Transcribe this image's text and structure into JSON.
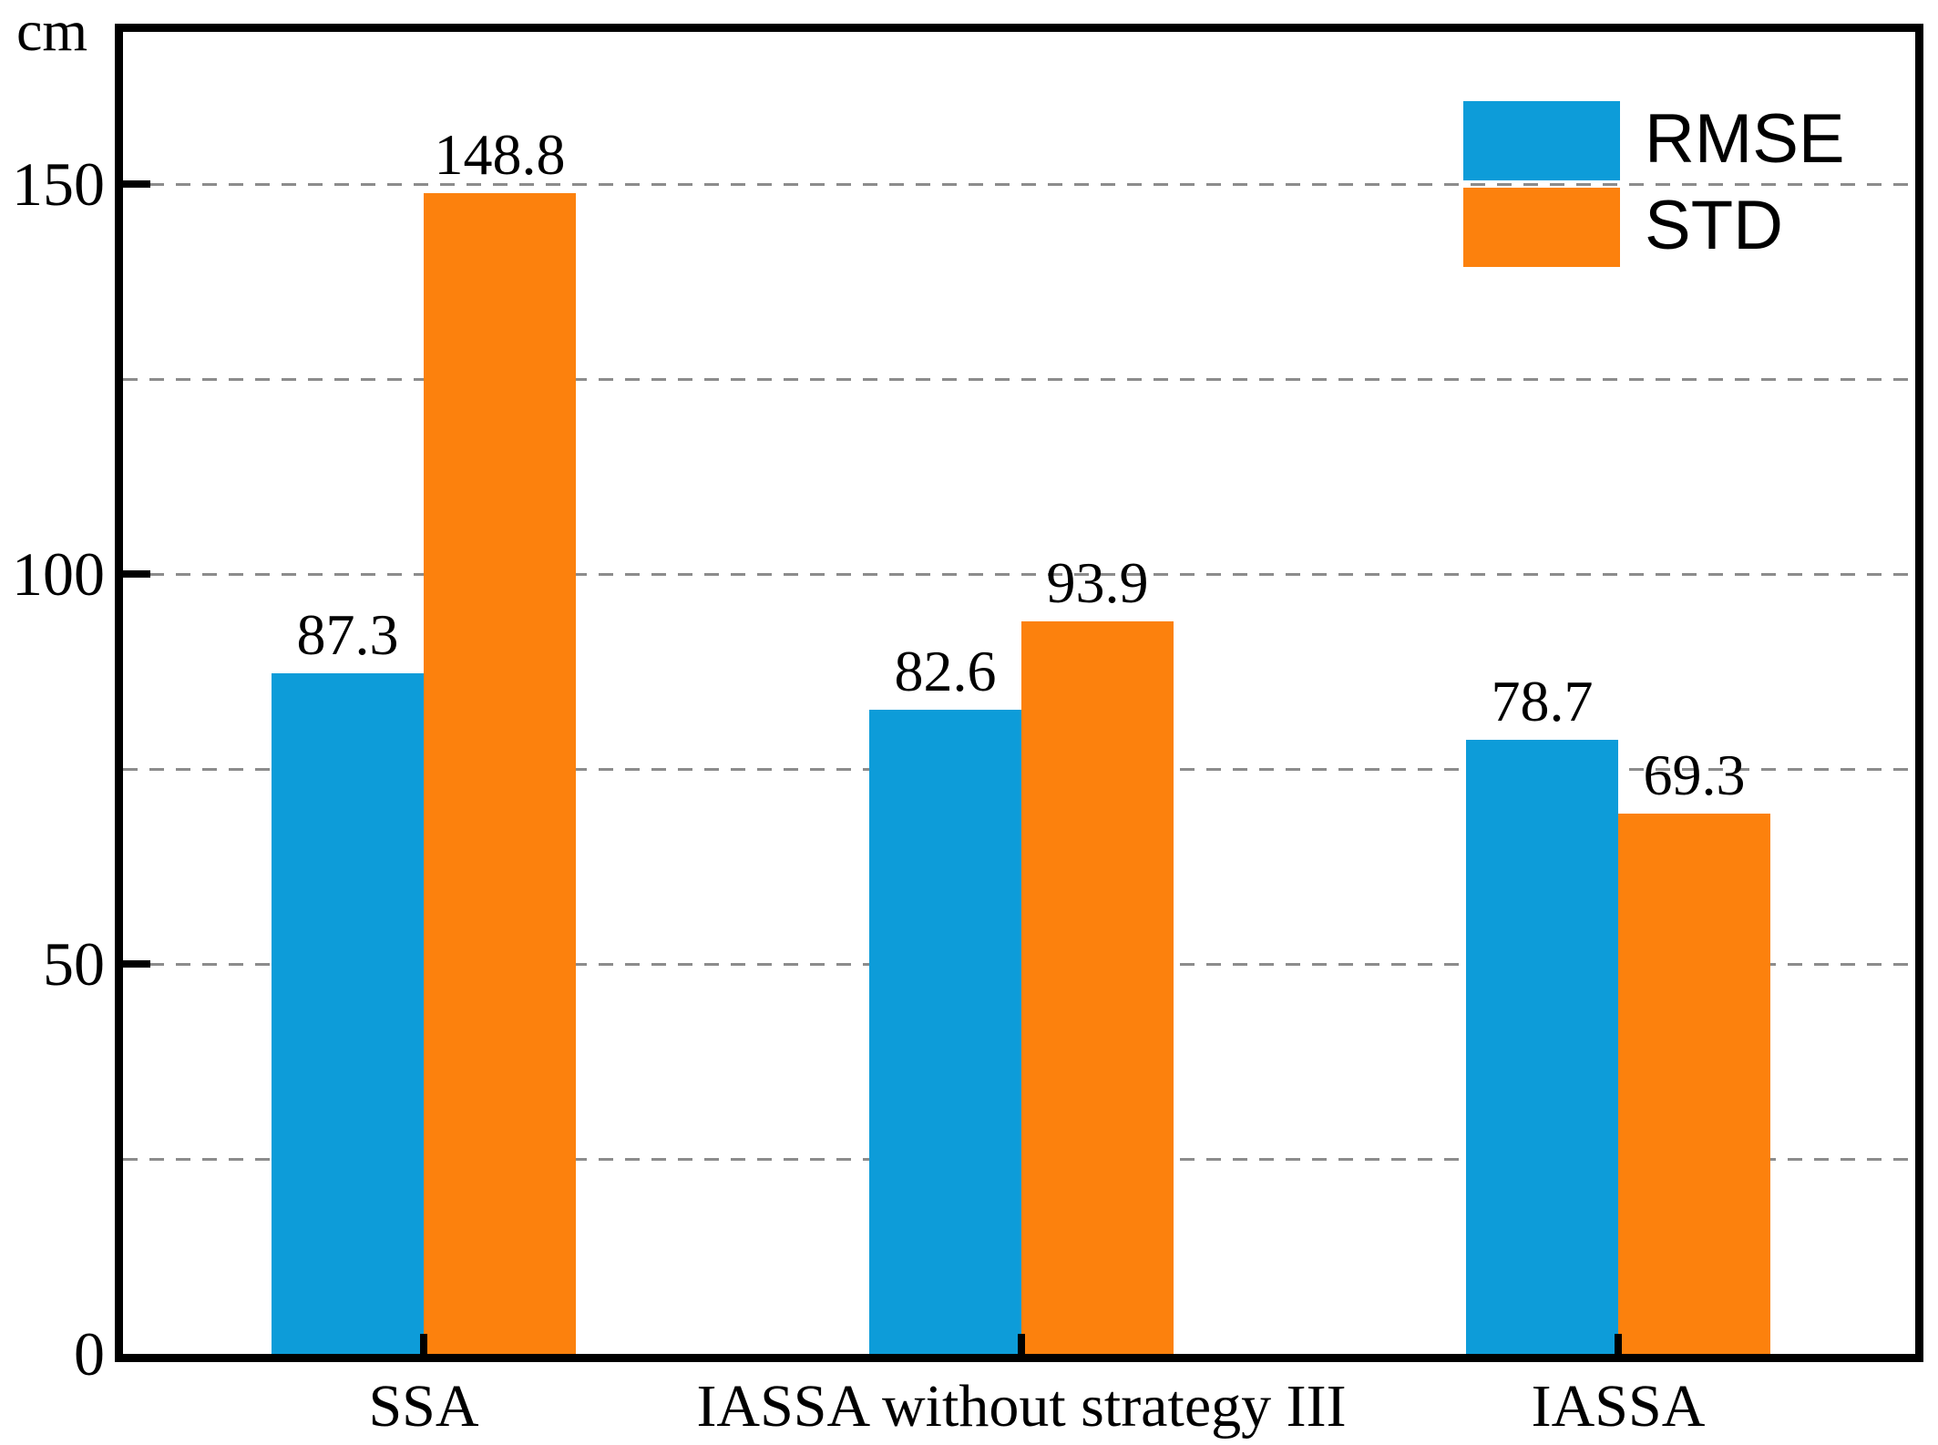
{
  "chart_data": {
    "type": "bar",
    "title": "",
    "unit_label": "cm",
    "xlabel": "",
    "ylabel": "cm",
    "categories": [
      "SSA",
      "IASSA without strategy III",
      "IASSA"
    ],
    "series": [
      {
        "name": "RMSE",
        "color": "#0D9CD9",
        "values": [
          87.3,
          82.6,
          78.7
        ]
      },
      {
        "name": "STD",
        "color": "#FC810D",
        "values": [
          148.8,
          93.9,
          69.3
        ]
      }
    ],
    "value_labels": [
      [
        "87.3",
        "82.6",
        "78.7"
      ],
      [
        "148.8",
        "93.9",
        "69.3"
      ]
    ],
    "ylim": [
      0,
      169.5
    ],
    "yticks": [
      0,
      50,
      100,
      150
    ],
    "ytick_labels": [
      "0",
      "50",
      "100",
      "150"
    ],
    "gridline_values": [
      25,
      50,
      75,
      100,
      125,
      150
    ],
    "grid_style": "dashed",
    "grid_color": "#8C8C8C",
    "axis_color": "#000000",
    "legend_position": "top-right",
    "legend_entries": [
      "RMSE",
      "STD"
    ]
  },
  "colors": {
    "rmse_blue": "#0D9CD9",
    "std_orange": "#FC810D",
    "grid_gray": "#8C8C8C",
    "axis_black": "#000000",
    "background": "#FFFFFF"
  }
}
